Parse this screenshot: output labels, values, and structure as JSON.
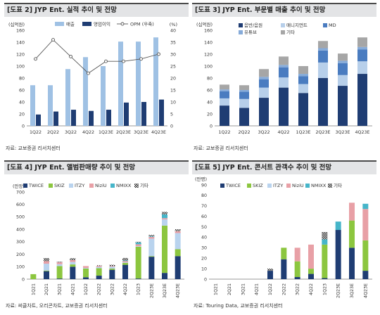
{
  "panels": [
    {
      "title": "[도표 2] JYP Ent. 실적 추이 및 전망",
      "source": "자료: 교보증권 리서치센터"
    },
    {
      "title": "[도표 3] JYP Ent. 부문별 매출 추이 및 전망",
      "source": "자료: 교보증권 리서치센터"
    },
    {
      "title": "[도표 4] JYP Ent. 앨범판매량 추이 및 전망",
      "source": "자료: 써클차트, 오리콘차트, 교보증권 리서치센터"
    },
    {
      "title": "[도표 5] JYP Ent. 콘서트 관객수 추이 및 전망",
      "source": "자료: Touring Data, 교보증권 리서치센터"
    }
  ],
  "colors": {
    "revenue": "#9fc1e4",
    "op": "#1f3d73",
    "opm": "#555555",
    "music": "#1f3d73",
    "mgmt": "#b7cfea",
    "md": "#4a7cc0",
    "youtube": "#86abd9",
    "other": "#a6a6a6",
    "twice": "#1f3d73",
    "skiz": "#8cc63f",
    "itzy": "#b9d3ee",
    "niziu": "#e8a0a6",
    "nmixx": "#46b5c9"
  },
  "chart_data": [
    {
      "type": "bar",
      "categories": [
        "1Q22",
        "2Q22",
        "3Q22",
        "4Q22",
        "1Q23E",
        "2Q23E",
        "3Q23E",
        "4Q23E"
      ],
      "series": [
        {
          "name": "매출",
          "values": [
            68,
            68,
            95,
            115,
            100,
            141,
            141,
            148
          ]
        },
        {
          "name": "영업이익",
          "values": [
            19,
            24,
            27,
            25,
            27,
            39,
            40,
            44
          ]
        },
        {
          "name": "OPM (우축)",
          "values": [
            28,
            36,
            29,
            22,
            27,
            27,
            28,
            30
          ]
        }
      ],
      "ylim": [
        0,
        160
      ],
      "y2lim": [
        0,
        40
      ],
      "yticks": [
        0,
        20,
        40,
        60,
        80,
        100,
        120,
        140,
        160
      ],
      "y2ticks": [
        0,
        5,
        10,
        15,
        20,
        25,
        30,
        35,
        40
      ],
      "ylabel": "(십억원)",
      "y2label": "(%)",
      "legend": "top"
    },
    {
      "type": "bar",
      "stacked": true,
      "categories": [
        "1Q22",
        "2Q22",
        "3Q22",
        "4Q22",
        "1Q23E",
        "2Q23E",
        "3Q23E",
        "4Q23E"
      ],
      "series": [
        {
          "name": "음반/음원",
          "values": [
            34,
            30,
            47,
            64,
            55,
            80,
            67,
            87
          ]
        },
        {
          "name": "매니지먼트",
          "values": [
            12,
            15,
            17,
            17,
            15,
            26,
            18,
            21
          ]
        },
        {
          "name": "MD",
          "values": [
            12,
            12,
            14,
            17,
            13,
            20,
            20,
            20
          ]
        },
        {
          "name": "유튜브",
          "values": [
            3,
            3,
            4,
            4,
            4,
            4,
            4,
            4
          ]
        },
        {
          "name": "기타",
          "values": [
            8,
            8,
            13,
            14,
            13,
            12,
            12,
            16
          ]
        }
      ],
      "ylim": [
        0,
        160
      ],
      "yticks": [
        0,
        20,
        40,
        60,
        80,
        100,
        120,
        140,
        160
      ],
      "ylabel": "(십억원)",
      "legend": "top"
    },
    {
      "type": "bar",
      "stacked": true,
      "categories": [
        "1Q21",
        "2Q21",
        "3Q21",
        "4Q21",
        "1Q22",
        "2Q22",
        "3Q22",
        "4Q22",
        "1Q23",
        "2Q23E",
        "3Q23E",
        "4Q23E"
      ],
      "series": [
        {
          "name": "TWICE",
          "values": [
            0,
            64,
            5,
            100,
            15,
            28,
            75,
            115,
            5,
            180,
            50,
            185
          ]
        },
        {
          "name": "SKIZ",
          "values": [
            40,
            5,
            100,
            18,
            70,
            60,
            10,
            15,
            255,
            5,
            380,
            55
          ]
        },
        {
          "name": "ITZY",
          "values": [
            0,
            55,
            15,
            20,
            5,
            10,
            15,
            5,
            5,
            140,
            50,
            130
          ]
        },
        {
          "name": "NiziU",
          "values": [
            0,
            20,
            15,
            15,
            15,
            8,
            5,
            10,
            15,
            15,
            10,
            15
          ]
        },
        {
          "name": "NMIXX",
          "values": [
            0,
            0,
            0,
            0,
            0,
            0,
            0,
            5,
            15,
            5,
            30,
            0
          ]
        },
        {
          "name": "기타",
          "values": [
            0,
            25,
            5,
            15,
            0,
            5,
            10,
            20,
            5,
            10,
            20,
            15
          ]
        }
      ],
      "ylim": [
        0,
        700
      ],
      "yticks": [
        0,
        100,
        200,
        300,
        400,
        500,
        600,
        700
      ],
      "ylabel": "(만장)",
      "legend": "top"
    },
    {
      "type": "bar",
      "stacked": true,
      "categories": [
        "1Q21",
        "2Q21",
        "3Q21",
        "4Q21",
        "1Q22",
        "2Q22",
        "3Q22",
        "4Q22",
        "1Q23",
        "2Q23E",
        "3Q23E",
        "4Q23E"
      ],
      "series": [
        {
          "name": "TWICE",
          "values": [
            0,
            0,
            0,
            0,
            8,
            19,
            2,
            5,
            1,
            47,
            30,
            8
          ]
        },
        {
          "name": "SKIZ",
          "values": [
            0,
            0,
            0,
            0,
            0,
            11,
            15,
            5,
            32,
            0,
            26,
            29
          ]
        },
        {
          "name": "ITZY",
          "values": [
            0,
            0,
            0,
            0,
            0,
            0,
            0,
            0,
            0,
            0,
            0,
            0
          ]
        },
        {
          "name": "NiziU",
          "values": [
            0,
            0,
            0,
            0,
            0,
            0,
            13,
            23,
            0,
            0,
            17,
            30
          ]
        },
        {
          "name": "NMIXX",
          "values": [
            0,
            0,
            0,
            0,
            0,
            0,
            0,
            0,
            5,
            8,
            0,
            5
          ]
        },
        {
          "name": "기타",
          "values": [
            0,
            0,
            0,
            0,
            2,
            0,
            0,
            0,
            7,
            0,
            0,
            0
          ]
        }
      ],
      "ylim": [
        0,
        90
      ],
      "yticks": [
        0,
        10,
        20,
        30,
        40,
        50,
        60,
        70,
        80,
        90
      ],
      "ylabel": "(만명)",
      "legend": "top"
    }
  ]
}
